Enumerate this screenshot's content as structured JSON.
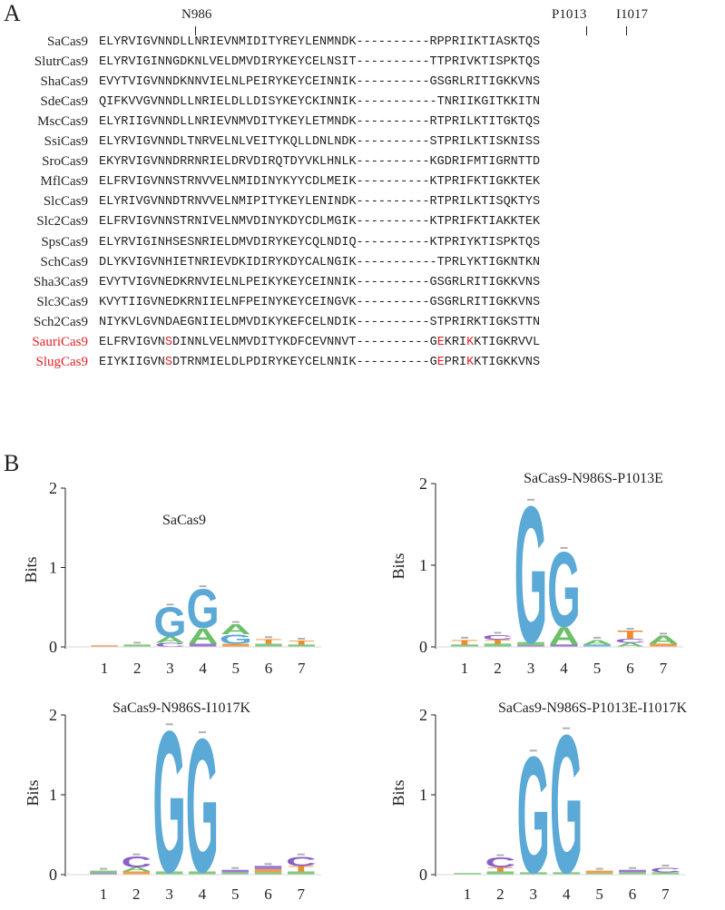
{
  "panel_a": {
    "letter": "A",
    "markers": [
      "N986",
      "P1013",
      "I1017"
    ],
    "rows": [
      {
        "name": "SaCas9",
        "highlight": false,
        "segments": [
          {
            "text": "ELYRVIGVNNDLLNRIEVNMIDITYREYLENMNDK----------RPPRIIKTIASKTQS"
          }
        ]
      },
      {
        "name": "SlutrCas9",
        "highlight": false,
        "segments": [
          {
            "text": "ELYRVIGINNGDKNLVELDMVDIRYKEYCELNSIT----------TTPRIVKTISPKTQS"
          }
        ]
      },
      {
        "name": "ShaCas9",
        "highlight": false,
        "segments": [
          {
            "text": "EVYTVIGVNNDKNNVIELNLPEIRYKEYCEINNIK----------GSGRLRITIGKKVNS"
          }
        ]
      },
      {
        "name": "SdeCas9",
        "highlight": false,
        "segments": [
          {
            "text": "QIFKVVGVNNDLLNRIELDLLDISYKEYCKINNIK-----------TNRIIKGITKKITN"
          }
        ]
      },
      {
        "name": "MscCas9",
        "highlight": false,
        "segments": [
          {
            "text": "ELYRIIGVNNDLLNRIEVNMVDITYKEYLETMNDK----------RTPRILKTITGKTQS"
          }
        ]
      },
      {
        "name": "SsiCas9",
        "highlight": false,
        "segments": [
          {
            "text": "ELYRVIGVNNDLTNRVELNLVEITYKQLLDNLNDK----------STPRILKTISKNISS"
          }
        ]
      },
      {
        "name": "SroCas9",
        "highlight": false,
        "segments": [
          {
            "text": "EKYRVIGVNNDRRNRIELDRVDIRQTDYVKLHNLK----------KGDRIFMTIGRNTTD"
          }
        ]
      },
      {
        "name": "MflCas9",
        "highlight": false,
        "segments": [
          {
            "text": "ELFRVIGVNNSTRNVVELNMIDINYKYYCDLMEIK----------KTPRIFKTIGKKTEK"
          }
        ]
      },
      {
        "name": "SlcCas9",
        "highlight": false,
        "segments": [
          {
            "text": "ELYRIVGVNNDTRNVVELNMIPITYKEYLENINDK----------RTPRILKTISQKTYS"
          }
        ]
      },
      {
        "name": "Slc2Cas9",
        "highlight": false,
        "segments": [
          {
            "text": "ELFRVIGVNNSTRNIVELNMVDINYKDYCDLMGIK----------KTPRIFKTIAKKTEK"
          }
        ]
      },
      {
        "name": "SpsCas9",
        "highlight": false,
        "segments": [
          {
            "text": "ELYRVIGINHSESNRIELDMVDIRYKEYCQLNDIQ----------KTPRIYKTISPKTQS"
          }
        ]
      },
      {
        "name": "SchCas9",
        "highlight": false,
        "segments": [
          {
            "text": "DLYKVIGVNHIETNRIEVDKIDIRYKDYCALNGIK-----------TPRLYKTIGKNTKN"
          }
        ]
      },
      {
        "name": "Sha3Cas9",
        "highlight": false,
        "segments": [
          {
            "text": "EVYTVIGVNEDKRNVIELNLPEIKYKEYCEINNIK----------GSGRLRITIGKKVNS"
          }
        ]
      },
      {
        "name": "Slc3Cas9",
        "highlight": false,
        "segments": [
          {
            "text": "KVYTIIGVNEDKRNIIELNFPEINYKEYCEINGVK----------GSGRLRITIGKKVNS"
          }
        ]
      },
      {
        "name": "Sch2Cas9",
        "highlight": false,
        "segments": [
          {
            "text": "NIYKVLGVNDAEGNIIELDMVDIKYKEFCELNDIK----------STPRIRKTIGKSTTN"
          }
        ]
      },
      {
        "name": "SauriCas9",
        "highlight": true,
        "segments": [
          {
            "text": "ELFRVIGVN"
          },
          {
            "text": "S",
            "red": true
          },
          {
            "text": "DINNLVELNMVDITYKDFCEVNNVT----------G"
          },
          {
            "text": "E",
            "red": true
          },
          {
            "text": "KRI"
          },
          {
            "text": "K",
            "red": true
          },
          {
            "text": "KTIGKRVVL"
          }
        ]
      },
      {
        "name": "SlugCas9",
        "highlight": true,
        "segments": [
          {
            "text": "EIYKIIGVN"
          },
          {
            "text": "S",
            "red": true
          },
          {
            "text": "DTRNMIELDLPDIRYKEYCELNNIK----------G"
          },
          {
            "text": "E",
            "red": true
          },
          {
            "text": "PRI"
          },
          {
            "text": "K",
            "red": true
          },
          {
            "text": "KTIGKKVNS"
          }
        ]
      }
    ]
  },
  "panel_b": {
    "letter": "B",
    "ylabel": "Bits",
    "yticks": [
      "0",
      "1",
      "2"
    ],
    "xticks": [
      "1",
      "2",
      "3",
      "4",
      "5",
      "6",
      "7"
    ],
    "base_colors": {
      "G": "#5aa9d6",
      "A": "#6cc06a",
      "C": "#8a5fc8",
      "T": "#ef8a2e"
    },
    "logos": [
      {
        "title": "SaCas9",
        "title_inside": true,
        "positions": [
          [
            {
              "base": "T",
              "bits": 0.02
            }
          ],
          [
            {
              "base": "A",
              "bits": 0.03
            }
          ],
          [
            {
              "base": "C",
              "bits": 0.05
            },
            {
              "base": "A",
              "bits": 0.08
            },
            {
              "base": "G",
              "bits": 0.38
            }
          ],
          [
            {
              "base": "C",
              "bits": 0.04
            },
            {
              "base": "A",
              "bits": 0.2
            },
            {
              "base": "G",
              "bits": 0.5
            }
          ],
          [
            {
              "base": "T",
              "bits": 0.04
            },
            {
              "base": "A",
              "bits": 0.13
            },
            {
              "base": "G",
              "bits": 0.12
            }
          ],
          [
            {
              "base": "A",
              "bits": 0.04
            },
            {
              "base": "T",
              "bits": 0.06
            }
          ],
          [
            {
              "base": "A",
              "bits": 0.03
            },
            {
              "base": "T",
              "bits": 0.05
            }
          ]
        ]
      },
      {
        "title": "SaCas9-N986S-P1013E",
        "title_inside": false,
        "positions": [
          [
            {
              "base": "A",
              "bits": 0.03
            },
            {
              "base": "T",
              "bits": 0.06
            }
          ],
          [
            {
              "base": "A",
              "bits": 0.04
            },
            {
              "base": "T",
              "bits": 0.05
            },
            {
              "base": "C",
              "bits": 0.06
            }
          ],
          [
            {
              "base": "C",
              "bits": 0.02
            },
            {
              "base": "A",
              "bits": 0.04
            },
            {
              "base": "G",
              "bits": 1.72
            }
          ],
          [
            {
              "base": "C",
              "bits": 0.03
            },
            {
              "base": "A",
              "bits": 0.22
            },
            {
              "base": "G",
              "bits": 0.94
            }
          ],
          [
            {
              "base": "G",
              "bits": 0.03
            },
            {
              "base": "A",
              "bits": 0.06
            }
          ],
          [
            {
              "base": "A",
              "bits": 0.05
            },
            {
              "base": "C",
              "bits": 0.05
            },
            {
              "base": "T",
              "bits": 0.1
            }
          ],
          [
            {
              "base": "T",
              "bits": 0.04
            },
            {
              "base": "A",
              "bits": 0.1
            }
          ]
        ]
      },
      {
        "title": "SaCas9-N986S-I1017K",
        "title_inside": false,
        "positions": [
          [
            {
              "base": "C",
              "bits": 0.02
            },
            {
              "base": "A",
              "bits": 0.03
            }
          ],
          [
            {
              "base": "A",
              "bits": 0.05
            },
            {
              "base": "T",
              "bits": 0.04
            },
            {
              "base": "C",
              "bits": 0.14
            }
          ],
          [
            {
              "base": "A",
              "bits": 0.04
            },
            {
              "base": "G",
              "bits": 1.82
            }
          ],
          [
            {
              "base": "A",
              "bits": 0.04
            },
            {
              "base": "G",
              "bits": 1.72
            }
          ],
          [
            {
              "base": "A",
              "bits": 0.03
            },
            {
              "base": "C",
              "bits": 0.03
            }
          ],
          [
            {
              "base": "A",
              "bits": 0.03
            },
            {
              "base": "T",
              "bits": 0.04
            },
            {
              "base": "C",
              "bits": 0.04
            }
          ],
          [
            {
              "base": "A",
              "bits": 0.04
            },
            {
              "base": "T",
              "bits": 0.07
            },
            {
              "base": "C",
              "bits": 0.12
            }
          ]
        ]
      },
      {
        "title": "SaCas9-N986S-P1013E-I1017K",
        "title_inside": false,
        "positions": [
          [
            {
              "base": "A",
              "bits": 0.02
            }
          ],
          [
            {
              "base": "A",
              "bits": 0.04
            },
            {
              "base": "T",
              "bits": 0.05
            },
            {
              "base": "C",
              "bits": 0.13
            }
          ],
          [
            {
              "base": "A",
              "bits": 0.03
            },
            {
              "base": "G",
              "bits": 1.5
            }
          ],
          [
            {
              "base": "A",
              "bits": 0.03
            },
            {
              "base": "G",
              "bits": 1.78
            }
          ],
          [
            {
              "base": "A",
              "bits": 0.02
            },
            {
              "base": "T",
              "bits": 0.03
            }
          ],
          [
            {
              "base": "A",
              "bits": 0.03
            },
            {
              "base": "C",
              "bits": 0.03
            }
          ],
          [
            {
              "base": "A",
              "bits": 0.03
            },
            {
              "base": "C",
              "bits": 0.06
            }
          ]
        ]
      }
    ]
  }
}
